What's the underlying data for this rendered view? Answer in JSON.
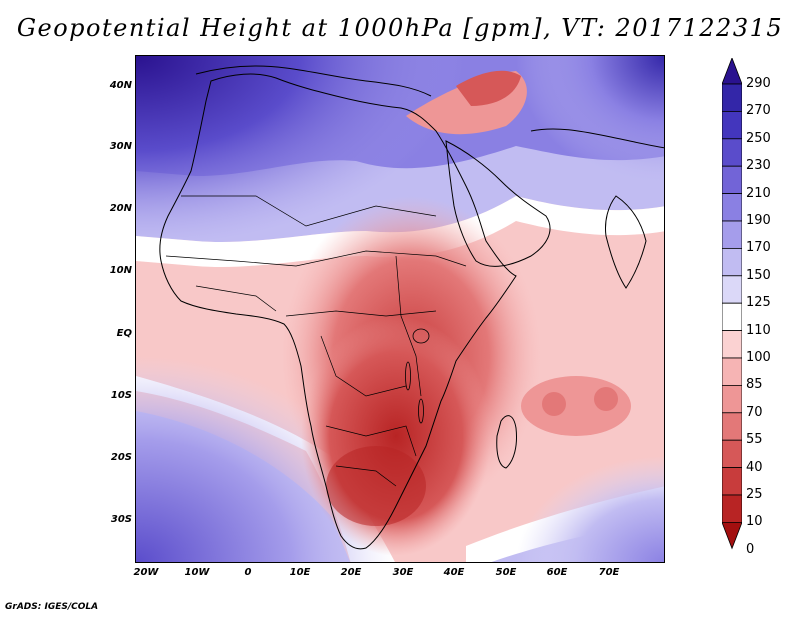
{
  "title": "Geopotential Height at 1000hPa [gpm], VT: 2017122315",
  "footer": "GrADS: IGES/COLA",
  "map": {
    "lat_labels": [
      "40N",
      "30N",
      "20N",
      "10N",
      "EQ",
      "10S",
      "20S",
      "30S"
    ],
    "lon_labels": [
      "20W",
      "10W",
      "0",
      "10E",
      "20E",
      "30E",
      "40E",
      "50E",
      "60E",
      "70E"
    ]
  },
  "colorbar": {
    "labels": [
      "290",
      "270",
      "250",
      "230",
      "210",
      "190",
      "170",
      "150",
      "125",
      "110",
      "100",
      "85",
      "70",
      "55",
      "40",
      "25",
      "10",
      "0"
    ],
    "colors": [
      "#2a128f",
      "#3326a8",
      "#4336bd",
      "#5a4ccb",
      "#7264d7",
      "#8a80e3",
      "#a59deb",
      "#c1bcf2",
      "#dbd8f8",
      "#ffffff",
      "#fbd2d2",
      "#f6b4b4",
      "#ee9696",
      "#e37878",
      "#d65858",
      "#c83c3c",
      "#b82424",
      "#a30f0f"
    ]
  },
  "colors": {
    "high_deep": "#3126a6",
    "high_mid": "#8c84e0",
    "neutral": "#ffffff",
    "low_light": "#f8c8c8",
    "low_deep": "#b32020",
    "border": "#000000"
  }
}
